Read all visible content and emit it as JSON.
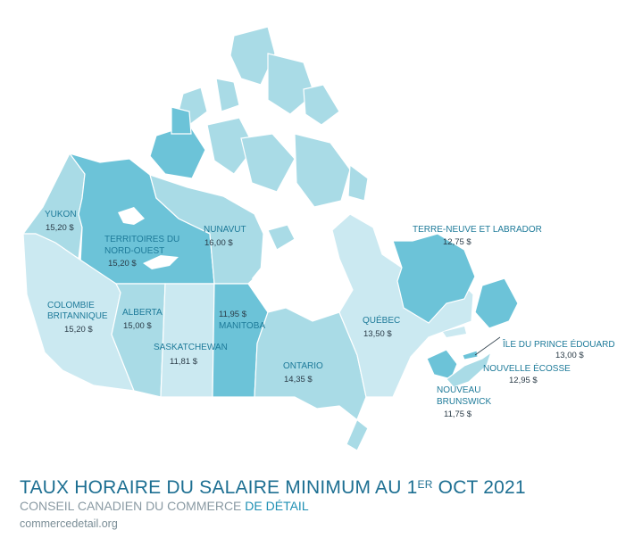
{
  "colors": {
    "nunavut": "#a9dbe6",
    "territories_dark": "#6cc3d8",
    "mid": "#8fd0e0",
    "light": "#cbe9f1",
    "label": "#1d7a99",
    "value": "#2a3b47"
  },
  "provinces": {
    "yukon": {
      "name": "YUKON",
      "wage": "15,20 $"
    },
    "nwt": {
      "name_line1": "TERRITOIRES DU",
      "name_line2": "NORD-OUEST",
      "wage": "15,20 $"
    },
    "nunavut": {
      "name": "NUNAVUT",
      "wage": "16,00 $"
    },
    "bc": {
      "name_line1": "COLOMBIE",
      "name_line2": "BRITANNIQUE",
      "wage": "15,20 $"
    },
    "alberta": {
      "name": "ALBERTA",
      "wage": "15,00 $"
    },
    "saskatchewan": {
      "name": "SASKATCHEWAN",
      "wage": "11,81 $"
    },
    "manitoba": {
      "name": "MANITOBA",
      "wage": "11,95 $"
    },
    "ontario": {
      "name": "ONTARIO",
      "wage": "14,35 $"
    },
    "quebec": {
      "name": "QUÉBEC",
      "wage": "13,50 $"
    },
    "newfoundland": {
      "name": "TERRE-NEUVE ET LABRADOR",
      "wage": "12,75 $"
    },
    "pei": {
      "name": "ÎLE DU PRINCE ÉDOUARD",
      "wage": "13,00 $"
    },
    "nova_scotia": {
      "name": "NOUVELLE ÉCOSSE",
      "wage": "12,95 $"
    },
    "new_brunswick": {
      "name_line1": "NOUVEAU",
      "name_line2": "BRUNSWICK",
      "wage": "11,75 $"
    }
  },
  "footer": {
    "title_main": "TAUX HORAIRE DU SALAIRE MINIMUM AU 1",
    "title_sup": "ER",
    "title_end": " OCT 2021",
    "subtitle_main": "CONSEIL CANADIEN DU COMMERCE ",
    "subtitle_accent": "DE DÉTAIL",
    "url": "commercedetail.org"
  }
}
